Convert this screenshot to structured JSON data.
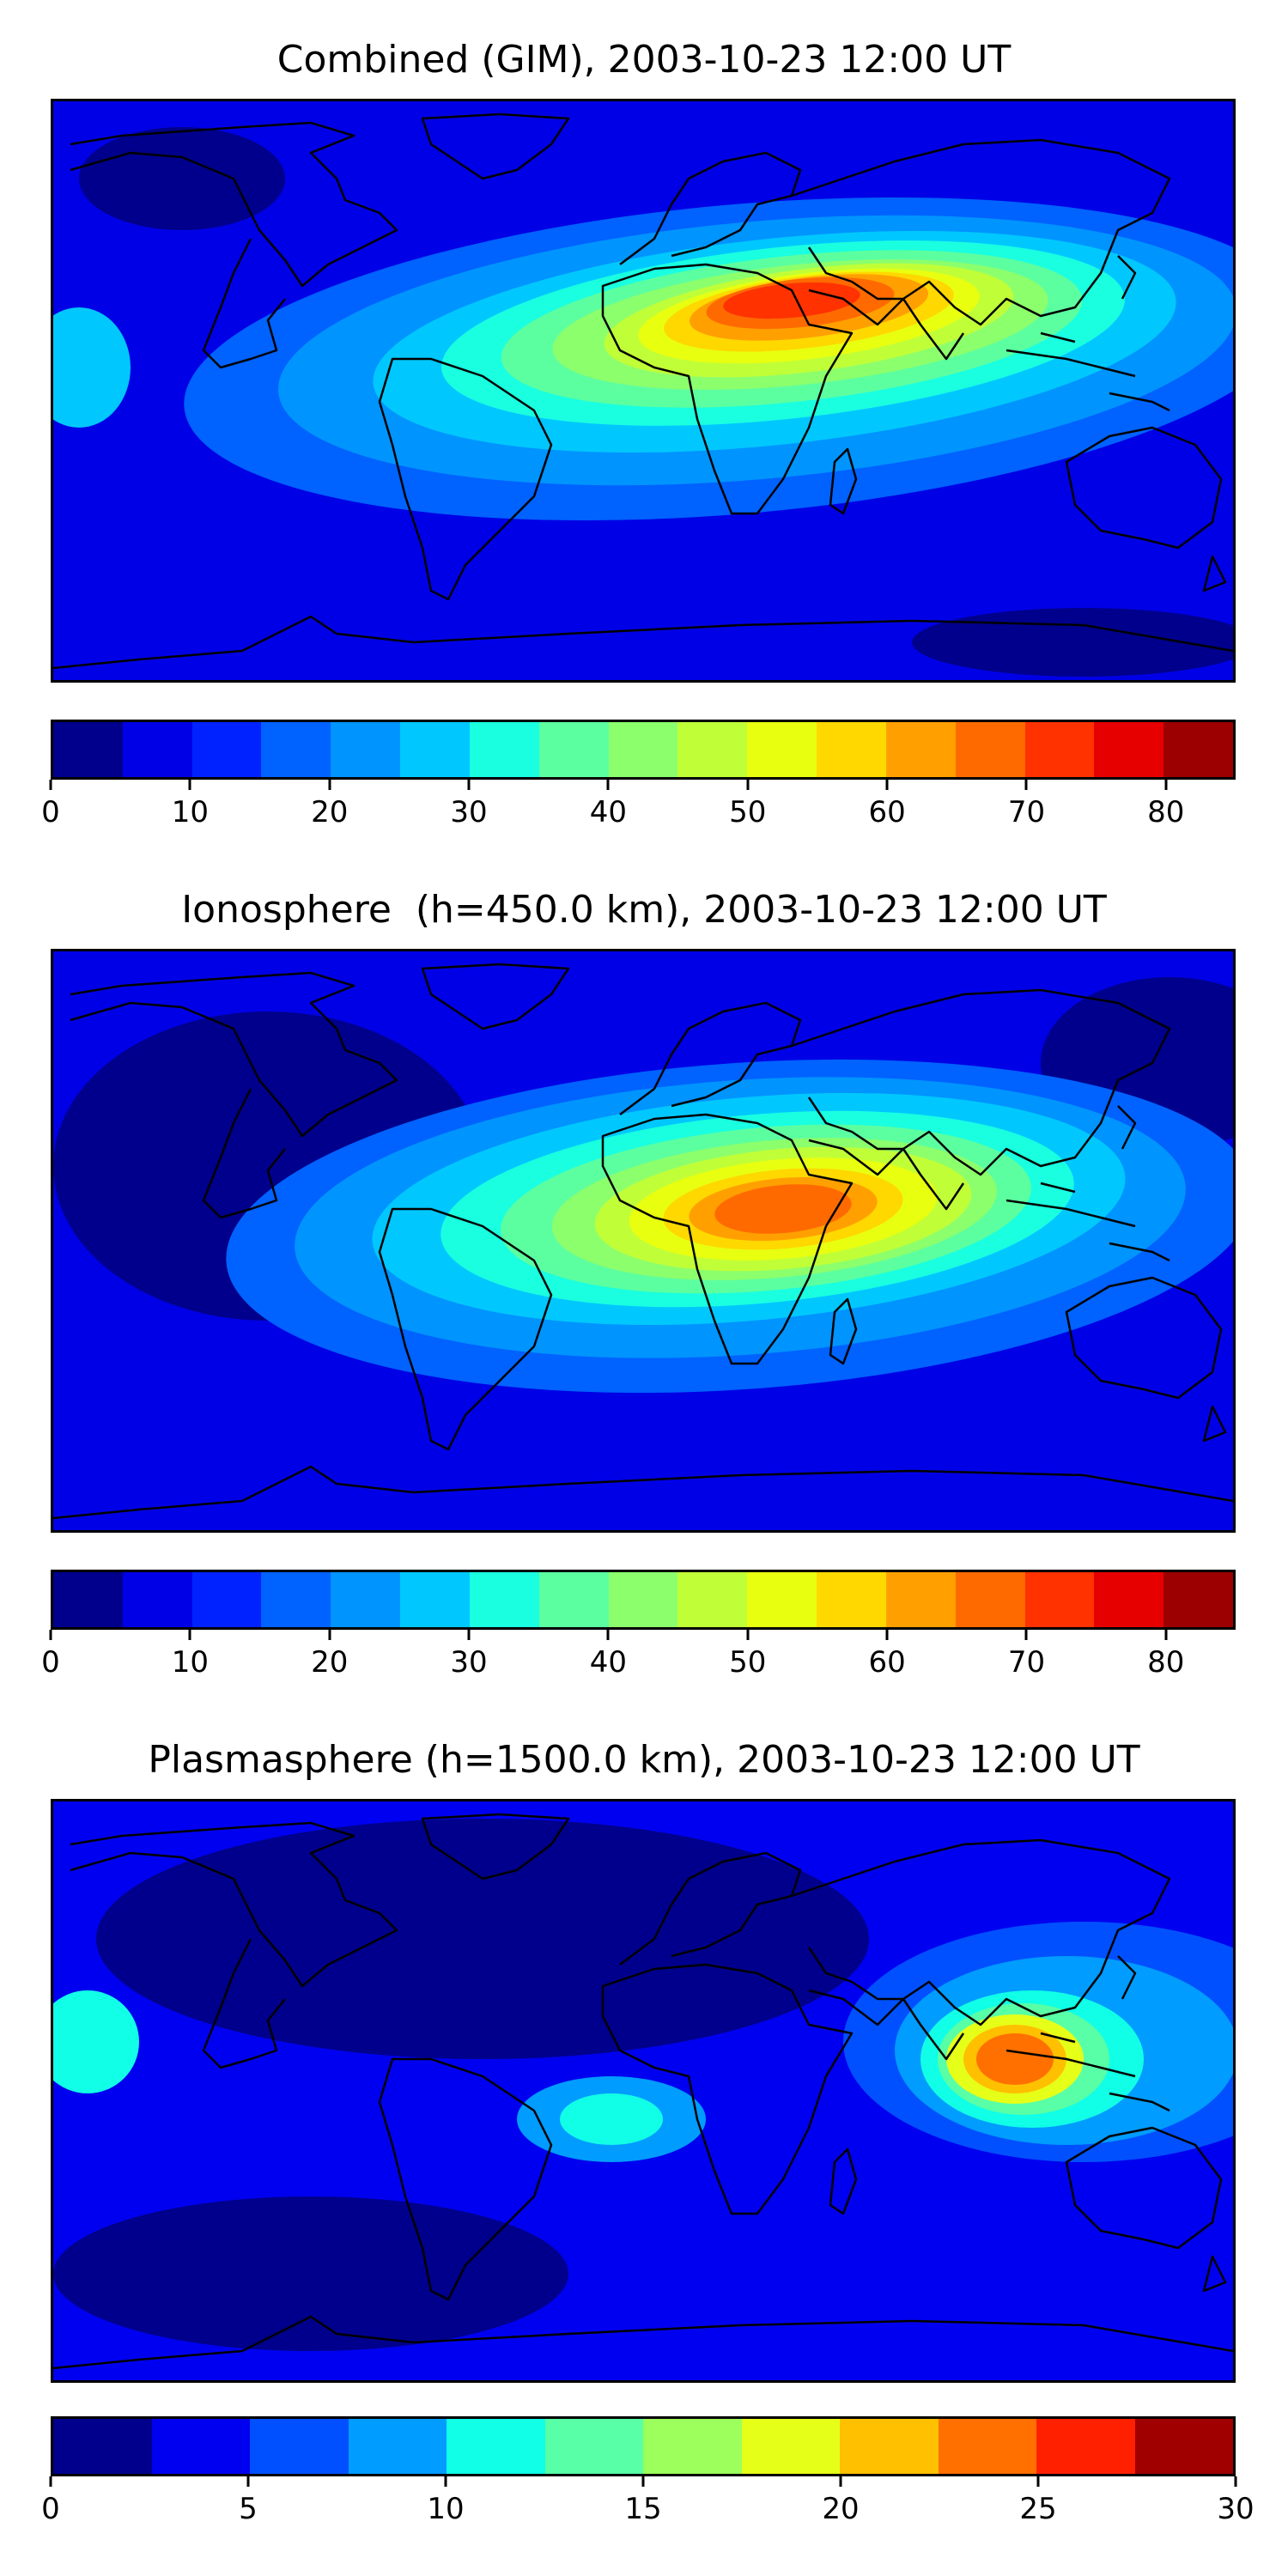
{
  "panels": [
    {
      "title": "Combined (GIM), 2003-10-23 12:00 UT",
      "colorbar": {
        "min": 0,
        "max": 85,
        "step": 5,
        "tick_values": [
          0,
          10,
          20,
          30,
          40,
          50,
          60,
          70,
          80
        ],
        "tick_labels": [
          "0",
          "10",
          "20",
          "30",
          "40",
          "50",
          "60",
          "70",
          "80"
        ]
      },
      "peak_region": "Africa / Arabia"
    },
    {
      "title": "Ionosphere  (h=450.0 km), 2003-10-23 12:00 UT",
      "colorbar": {
        "min": 0,
        "max": 85,
        "step": 5,
        "tick_values": [
          0,
          10,
          20,
          30,
          40,
          50,
          60,
          70,
          80
        ],
        "tick_labels": [
          "0",
          "10",
          "20",
          "30",
          "40",
          "50",
          "60",
          "70",
          "80"
        ]
      },
      "peak_region": "Africa"
    },
    {
      "title": "Plasmasphere (h=1500.0 km), 2003-10-23 12:00 UT",
      "colorbar": {
        "min": 0,
        "max": 30,
        "step": 2.5,
        "tick_values": [
          0,
          5,
          10,
          15,
          20,
          25,
          30
        ],
        "tick_labels": [
          "0",
          "5",
          "10",
          "15",
          "20",
          "25",
          "30"
        ]
      },
      "peak_region": "Southeast Asia"
    }
  ],
  "colormap": [
    "#00008c",
    "#0000e6",
    "#0022ff",
    "#0062ff",
    "#0094ff",
    "#00c8ff",
    "#19ffe0",
    "#5cffa0",
    "#8cff6c",
    "#c0ff38",
    "#e8ff10",
    "#ffd800",
    "#ffa000",
    "#ff6a00",
    "#ff3200",
    "#e60000",
    "#9c0000"
  ],
  "colormap_plasmasphere": [
    "#00008c",
    "#0000f0",
    "#0050ff",
    "#009cff",
    "#10ffe6",
    "#58ffa6",
    "#9cff5c",
    "#e6ff18",
    "#ffc000",
    "#ff7000",
    "#ff2000",
    "#a00000"
  ]
}
